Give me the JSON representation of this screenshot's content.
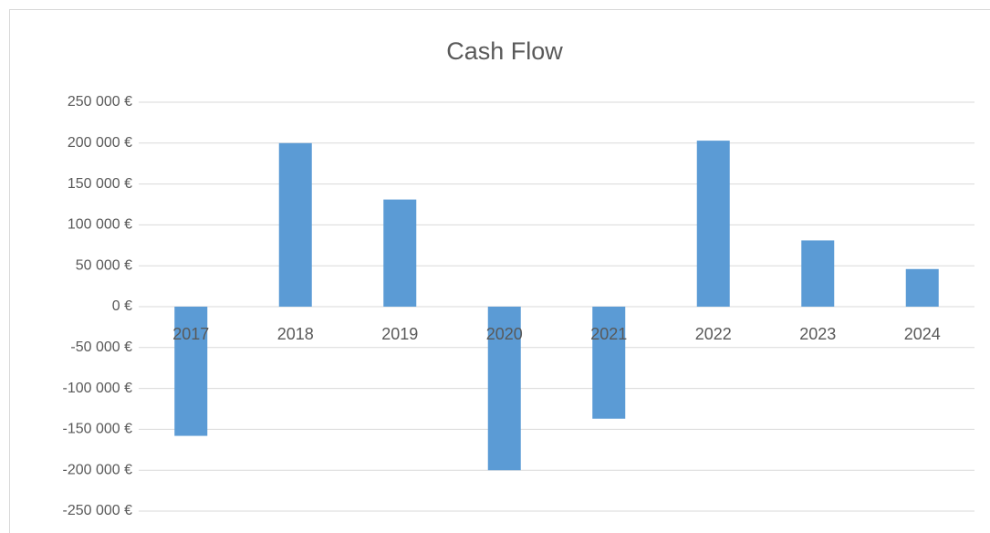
{
  "chart_data": {
    "type": "bar",
    "title": "Cash Flow",
    "categories": [
      "2017",
      "2018",
      "2019",
      "2020",
      "2021",
      "2022",
      "2023",
      "2024"
    ],
    "values": [
      -158000,
      200000,
      131000,
      -200000,
      -137000,
      203000,
      81000,
      46000
    ],
    "color": "#5b9bd5",
    "ylim": [
      -250000,
      250000
    ],
    "yticks": [
      {
        "value": -250000,
        "label": "-250 000 €"
      },
      {
        "value": -200000,
        "label": "-200 000 €"
      },
      {
        "value": -150000,
        "label": "-150 000 €"
      },
      {
        "value": -100000,
        "label": "-100 000 €"
      },
      {
        "value": -50000,
        "label": "-50 000 €"
      },
      {
        "value": 0,
        "label": "0 €"
      },
      {
        "value": 50000,
        "label": "50 000 €"
      },
      {
        "value": 100000,
        "label": "100 000 €"
      },
      {
        "value": 150000,
        "label": "150 000 €"
      },
      {
        "value": 200000,
        "label": "200 000 €"
      },
      {
        "value": 250000,
        "label": "250 000 €"
      }
    ],
    "grid": true
  }
}
